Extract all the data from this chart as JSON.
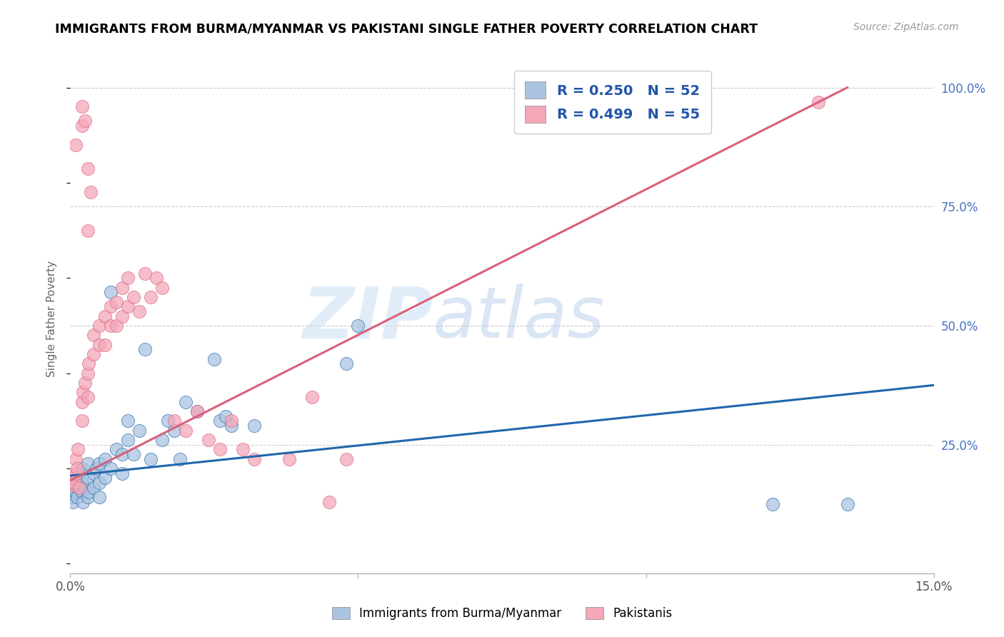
{
  "title": "IMMIGRANTS FROM BURMA/MYANMAR VS PAKISTANI SINGLE FATHER POVERTY CORRELATION CHART",
  "source": "Source: ZipAtlas.com",
  "ylabel": "Single Father Poverty",
  "xlim": [
    0,
    0.15
  ],
  "ylim": [
    -0.02,
    1.05
  ],
  "yticks_right": [
    0.25,
    0.5,
    0.75,
    1.0
  ],
  "yticklabels_right": [
    "25.0%",
    "50.0%",
    "75.0%",
    "100.0%"
  ],
  "legend1_R": "0.250",
  "legend1_N": "52",
  "legend2_R": "0.499",
  "legend2_N": "55",
  "color_blue": "#aac4e0",
  "color_pink": "#f4a7b9",
  "line_blue": "#2166ac",
  "line_pink": "#d9607a",
  "watermark_zip": "ZIP",
  "watermark_atlas": "atlas",
  "blue_line_x": [
    0.0,
    0.15
  ],
  "blue_line_y": [
    0.185,
    0.375
  ],
  "pink_line_x": [
    0.0,
    0.135
  ],
  "pink_line_y": [
    0.175,
    1.0
  ],
  "blue_x": [
    0.0003,
    0.0005,
    0.0007,
    0.001,
    0.001,
    0.0012,
    0.0013,
    0.0015,
    0.0015,
    0.002,
    0.002,
    0.002,
    0.0022,
    0.0025,
    0.003,
    0.003,
    0.003,
    0.0032,
    0.004,
    0.004,
    0.0045,
    0.005,
    0.005,
    0.005,
    0.006,
    0.006,
    0.007,
    0.007,
    0.008,
    0.009,
    0.009,
    0.01,
    0.01,
    0.011,
    0.012,
    0.013,
    0.014,
    0.016,
    0.017,
    0.018,
    0.019,
    0.02,
    0.022,
    0.025,
    0.026,
    0.027,
    0.028,
    0.032,
    0.048,
    0.05,
    0.122,
    0.135
  ],
  "blue_y": [
    0.14,
    0.13,
    0.16,
    0.15,
    0.17,
    0.14,
    0.18,
    0.19,
    0.16,
    0.15,
    0.17,
    0.2,
    0.13,
    0.16,
    0.18,
    0.14,
    0.21,
    0.15,
    0.19,
    0.16,
    0.2,
    0.17,
    0.21,
    0.14,
    0.22,
    0.18,
    0.2,
    0.57,
    0.24,
    0.23,
    0.19,
    0.26,
    0.3,
    0.23,
    0.28,
    0.45,
    0.22,
    0.26,
    0.3,
    0.28,
    0.22,
    0.34,
    0.32,
    0.43,
    0.3,
    0.31,
    0.29,
    0.29,
    0.42,
    0.5,
    0.125,
    0.125
  ],
  "pink_x": [
    0.0003,
    0.0005,
    0.0007,
    0.001,
    0.001,
    0.0012,
    0.0013,
    0.0015,
    0.002,
    0.002,
    0.0022,
    0.0025,
    0.003,
    0.003,
    0.0032,
    0.004,
    0.004,
    0.005,
    0.005,
    0.006,
    0.006,
    0.007,
    0.007,
    0.008,
    0.008,
    0.009,
    0.009,
    0.01,
    0.01,
    0.011,
    0.012,
    0.013,
    0.014,
    0.015,
    0.016,
    0.018,
    0.02,
    0.022,
    0.024,
    0.026,
    0.028,
    0.03,
    0.032,
    0.038,
    0.042,
    0.048,
    0.001,
    0.002,
    0.002,
    0.003,
    0.0025,
    0.003,
    0.0035,
    0.13,
    0.045
  ],
  "pink_y": [
    0.165,
    0.18,
    0.17,
    0.19,
    0.22,
    0.2,
    0.24,
    0.16,
    0.3,
    0.34,
    0.36,
    0.38,
    0.4,
    0.35,
    0.42,
    0.44,
    0.48,
    0.46,
    0.5,
    0.52,
    0.46,
    0.5,
    0.54,
    0.5,
    0.55,
    0.52,
    0.58,
    0.54,
    0.6,
    0.56,
    0.53,
    0.61,
    0.56,
    0.6,
    0.58,
    0.3,
    0.28,
    0.32,
    0.26,
    0.24,
    0.3,
    0.24,
    0.22,
    0.22,
    0.35,
    0.22,
    0.88,
    0.92,
    0.96,
    0.7,
    0.93,
    0.83,
    0.78,
    0.97,
    0.13
  ]
}
